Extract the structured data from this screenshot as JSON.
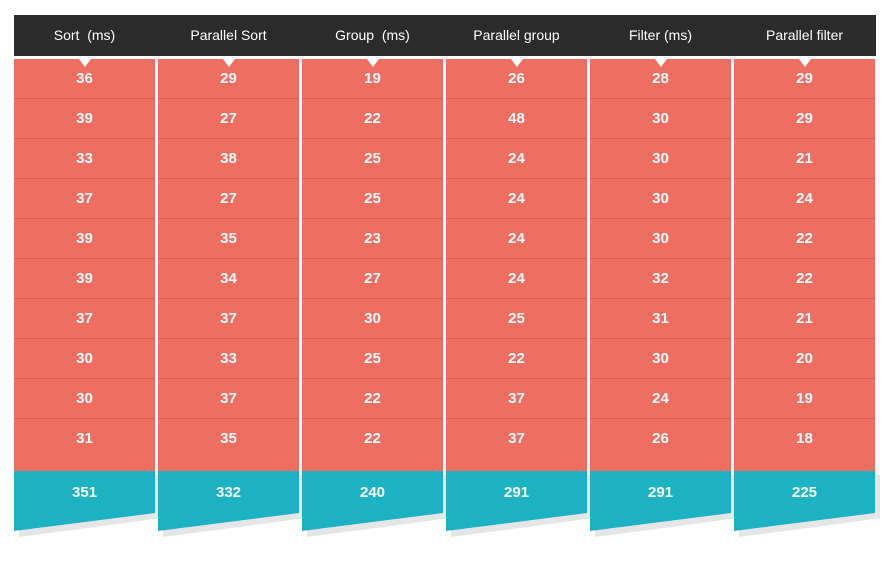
{
  "columns": [
    {
      "title": "Sort  (ms)",
      "values": [
        "36",
        "39",
        "33",
        "37",
        "39",
        "39",
        "37",
        "30",
        "30",
        "31"
      ],
      "total": "351"
    },
    {
      "title": "Parallel Sort",
      "values": [
        "29",
        "27",
        "38",
        "27",
        "35",
        "34",
        "37",
        "33",
        "37",
        "35"
      ],
      "total": "332"
    },
    {
      "title": "Group  (ms)",
      "values": [
        "19",
        "22",
        "25",
        "25",
        "23",
        "27",
        "30",
        "25",
        "22",
        "22"
      ],
      "total": "240"
    },
    {
      "title": "Parallel group",
      "values": [
        "26",
        "48",
        "24",
        "24",
        "24",
        "24",
        "25",
        "22",
        "37",
        "37"
      ],
      "total": "291"
    },
    {
      "title": "Filter (ms)",
      "values": [
        "28",
        "30",
        "30",
        "30",
        "30",
        "32",
        "31",
        "30",
        "24",
        "26"
      ],
      "total": "291"
    },
    {
      "title": "Parallel filter",
      "values": [
        "29",
        "29",
        "21",
        "24",
        "22",
        "22",
        "21",
        "20",
        "19",
        "18"
      ],
      "total": "225"
    }
  ],
  "colors": {
    "header_bg": "#2b2b2b",
    "cell_bg": "#ee6558",
    "total_bg": "#1cb2c3",
    "text": "#ffffff"
  }
}
